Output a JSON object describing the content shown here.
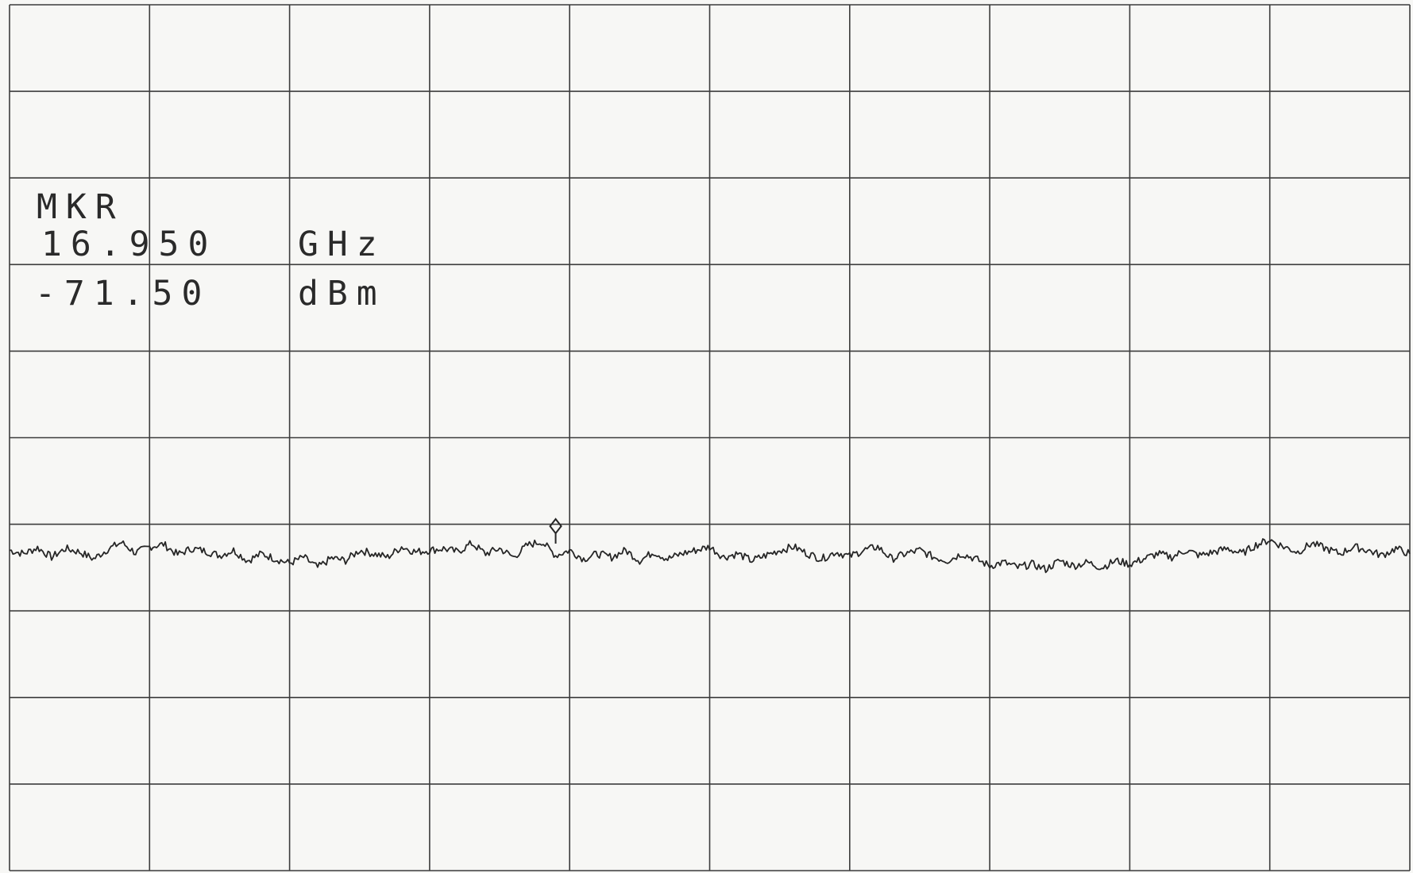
{
  "marker": {
    "label": "MKR",
    "freq_value": "16.950",
    "freq_unit": "GHz",
    "level_value": "-71.50",
    "level_unit": "dBm"
  },
  "chart_data": {
    "type": "line",
    "title": "",
    "xlabel": "",
    "ylabel": "",
    "grid": true,
    "xdiv": 10,
    "ydiv": 10,
    "x": [
      0,
      0.1,
      0.2,
      0.3,
      0.4,
      0.5,
      0.6,
      0.7,
      0.8,
      0.9,
      1.0,
      1.1,
      1.2,
      1.3,
      1.4,
      1.5,
      1.6,
      1.7,
      1.8,
      1.9,
      2.0,
      2.1,
      2.2,
      2.3,
      2.4,
      2.5,
      2.6,
      2.7,
      2.8,
      2.9,
      3.0,
      3.1,
      3.2,
      3.3,
      3.4,
      3.5,
      3.6,
      3.7,
      3.8,
      3.9,
      4.0,
      4.1,
      4.2,
      4.3,
      4.4,
      4.5,
      4.6,
      4.7,
      4.8,
      4.9,
      5.0,
      5.1,
      5.2,
      5.3,
      5.4,
      5.5,
      5.6,
      5.7,
      5.8,
      5.9,
      6.0,
      6.1,
      6.2,
      6.3,
      6.4,
      6.5,
      6.6,
      6.7,
      6.8,
      6.9,
      7.0,
      7.1,
      7.2,
      7.3,
      7.4,
      7.5,
      7.6,
      7.7,
      7.8,
      7.9,
      8.0,
      8.1,
      8.2,
      8.3,
      8.4,
      8.5,
      8.6,
      8.7,
      8.8,
      8.9,
      9.0,
      9.1,
      9.2,
      9.3,
      9.4,
      9.5,
      9.6,
      9.7,
      9.8,
      9.9,
      10.0
    ],
    "series": [
      {
        "values": [
          3.7,
          3.66,
          3.73,
          3.62,
          3.72,
          3.68,
          3.6,
          3.71,
          3.79,
          3.67,
          3.74,
          3.77,
          3.65,
          3.72,
          3.69,
          3.64,
          3.7,
          3.58,
          3.66,
          3.6,
          3.55,
          3.62,
          3.5,
          3.61,
          3.58,
          3.7,
          3.66,
          3.62,
          3.74,
          3.68,
          3.7,
          3.72,
          3.68,
          3.78,
          3.66,
          3.72,
          3.62,
          3.76,
          3.8,
          3.64,
          3.7,
          3.6,
          3.66,
          3.62,
          3.7,
          3.58,
          3.68,
          3.6,
          3.66,
          3.7,
          3.74,
          3.62,
          3.66,
          3.58,
          3.64,
          3.7,
          3.74,
          3.66,
          3.6,
          3.68,
          3.63,
          3.7,
          3.74,
          3.6,
          3.66,
          3.7,
          3.62,
          3.58,
          3.66,
          3.6,
          3.52,
          3.56,
          3.5,
          3.54,
          3.48,
          3.58,
          3.52,
          3.56,
          3.5,
          3.58,
          3.54,
          3.6,
          3.66,
          3.62,
          3.7,
          3.64,
          3.68,
          3.72,
          3.66,
          3.76,
          3.82,
          3.74,
          3.68,
          3.78,
          3.72,
          3.66,
          3.74,
          3.7,
          3.64,
          3.72,
          3.66
        ]
      }
    ],
    "marker": {
      "x": 3.9,
      "y": 3.85
    },
    "xlim": [
      0,
      10
    ],
    "ylim": [
      0,
      10
    ]
  },
  "colors": {
    "grid": "#3c3c3c",
    "trace": "#262626",
    "paper": "#f7f7f5"
  }
}
